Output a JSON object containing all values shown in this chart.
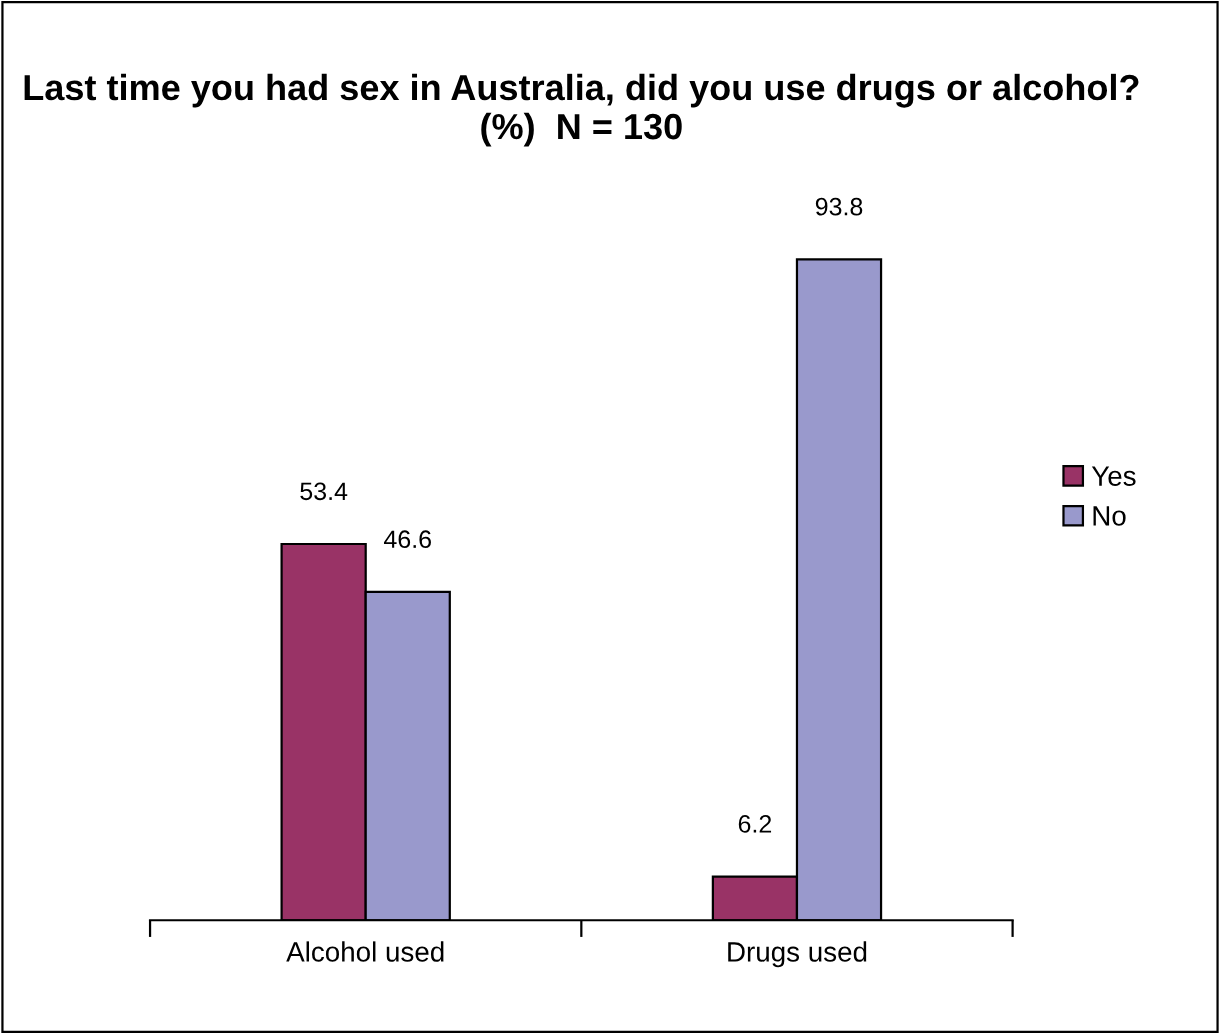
{
  "chart_data": {
    "type": "bar",
    "title": "Last time you had sex in Australia, did you use drugs or alcohol? (%)  N = 130",
    "categories": [
      "Alcohol used",
      "Drugs used"
    ],
    "series": [
      {
        "name": "Yes",
        "color": "#993366",
        "values": [
          53.4,
          6.2
        ]
      },
      {
        "name": "No",
        "color": "#9999cc",
        "values": [
          46.6,
          93.8
        ]
      }
    ],
    "data_labels": true,
    "legend": "right",
    "grid": false
  }
}
